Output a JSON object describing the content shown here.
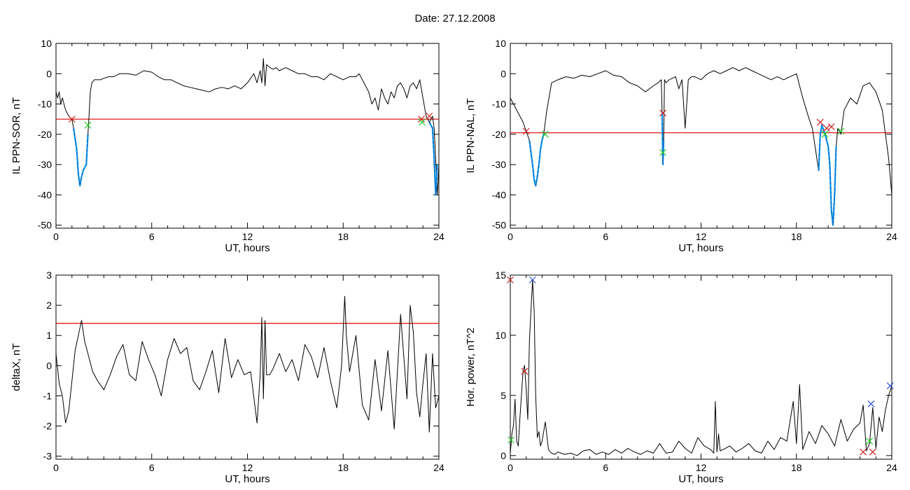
{
  "figure": {
    "title": "Date:  27.12.2008"
  },
  "colors": {
    "trace": "#000000",
    "threshold": "#dd0000",
    "segment": "#1f5fd6",
    "segment_alt": "#00a0e0",
    "start_marker": "#22cc22",
    "end_marker": "#cc2222",
    "peak_marker": "#2a4fd6"
  },
  "chart_data": [
    {
      "type": "line",
      "xlabel": "UT, hours",
      "ylabel": "IL PPN-SOR, nT",
      "xlim": [
        0,
        24
      ],
      "ylim": [
        -51,
        10
      ],
      "xticks": [
        0,
        6,
        12,
        18,
        24
      ],
      "yticks": [
        -50,
        -40,
        -30,
        -20,
        -10,
        0,
        10
      ],
      "threshold": -15,
      "series": [
        {
          "x": [
            0.0,
            0.1,
            0.2,
            0.3,
            0.4,
            0.6,
            0.8,
            1.0,
            1.1,
            1.3,
            1.4,
            1.5,
            1.6,
            1.7,
            1.8,
            1.9,
            2.0,
            2.05,
            2.15,
            2.25,
            2.4,
            2.6,
            2.8,
            3.0,
            3.3,
            3.6,
            4.0,
            4.5,
            5.0,
            5.5,
            6.0,
            6.4,
            6.8,
            7.2,
            7.6,
            8.0,
            8.4,
            8.8,
            9.2,
            9.6,
            10.0,
            10.4,
            10.8,
            11.2,
            11.6,
            12.0,
            12.2,
            12.4,
            12.6,
            12.8,
            12.9,
            13.0,
            13.1,
            13.2,
            13.4,
            13.6,
            13.8,
            14.0,
            14.4,
            14.8,
            15.2,
            15.6,
            16.0,
            16.4,
            16.8,
            17.2,
            17.6,
            18.0,
            18.4,
            18.8,
            19.0,
            19.2,
            19.4,
            19.6,
            19.8,
            20.0,
            20.2,
            20.4,
            20.6,
            20.8,
            21.0,
            21.2,
            21.4,
            21.6,
            21.8,
            22.0,
            22.2,
            22.4,
            22.6,
            22.8,
            23.0,
            23.2,
            23.4,
            23.6,
            23.7,
            23.8,
            23.9,
            24.0
          ],
          "y": [
            -6,
            -8,
            -6,
            -10,
            -8,
            -12,
            -14,
            -15,
            -18,
            -25,
            -33,
            -37,
            -34,
            -32,
            -31,
            -30,
            -20,
            -16,
            -6,
            -3,
            -2,
            -2,
            -2,
            -1.5,
            -1,
            -1,
            0,
            0,
            -0.5,
            1,
            0.5,
            -1,
            -2,
            -2,
            -3,
            -4,
            -4.5,
            -5,
            -5.5,
            -6,
            -5,
            -4.5,
            -5,
            -4,
            -5,
            -3,
            -1.5,
            0,
            -3,
            1,
            -3,
            5,
            -4,
            3,
            2,
            1.5,
            2,
            1,
            2,
            1,
            0,
            0,
            -1,
            -1,
            -2,
            0,
            -1,
            -2,
            -1,
            -1,
            0,
            -2,
            -4,
            -6,
            -10,
            -8,
            -12,
            -5,
            -8,
            -10,
            -6,
            -8,
            -4,
            -3,
            -5,
            -8,
            -4,
            -3,
            -5,
            -2,
            -8,
            -14,
            -16,
            -14,
            -18,
            -28,
            -40,
            -30
          ],
          "markers": [
            {
              "x": 1.0,
              "y": -15,
              "color": "end"
            },
            {
              "x": 2.0,
              "y": -17,
              "color": "start"
            },
            {
              "x": 22.9,
              "y": -15,
              "color": "end"
            },
            {
              "x": 23.4,
              "y": -14,
              "color": "end"
            },
            {
              "x": 22.95,
              "y": -16,
              "color": "start"
            }
          ]
        }
      ],
      "highlight_segments": [
        {
          "x": [
            1.1,
            1.3,
            1.4,
            1.5,
            1.6,
            1.7,
            1.8,
            1.9,
            2.0
          ],
          "y": [
            -18,
            -25,
            -33,
            -37,
            -34,
            -32,
            -31,
            -30,
            -20
          ]
        },
        {
          "x": [
            23.4,
            23.6,
            23.7,
            23.8,
            23.9
          ],
          "y": [
            -16,
            -18,
            -28,
            -40,
            -30
          ]
        }
      ]
    },
    {
      "type": "line",
      "xlabel": "UT, hours",
      "ylabel": "IL PPN-NAL, nT",
      "xlim": [
        0,
        24
      ],
      "ylim": [
        -51,
        10
      ],
      "xticks": [
        0,
        6,
        12,
        18,
        24
      ],
      "yticks": [
        -50,
        -40,
        -30,
        -20,
        -10,
        0,
        10
      ],
      "threshold": -19.5,
      "series": [
        {
          "x": [
            0.0,
            0.2,
            0.4,
            0.6,
            0.8,
            1.0,
            1.2,
            1.4,
            1.5,
            1.6,
            1.7,
            1.8,
            1.9,
            2.0,
            2.1,
            2.3,
            2.6,
            3.0,
            3.5,
            4.0,
            4.5,
            5.0,
            5.5,
            6.0,
            6.5,
            7.0,
            7.5,
            8.0,
            8.5,
            9.0,
            9.3,
            9.5,
            9.55,
            9.6,
            9.65,
            9.7,
            9.8,
            10.0,
            10.4,
            10.6,
            10.8,
            11.0,
            11.2,
            11.4,
            11.6,
            12.0,
            12.4,
            12.8,
            13.2,
            13.6,
            14.0,
            14.4,
            14.8,
            15.2,
            15.6,
            16.0,
            16.4,
            16.8,
            17.2,
            17.6,
            18.0,
            18.4,
            18.8,
            19.0,
            19.2,
            19.4,
            19.5,
            19.6,
            19.8,
            20.0,
            20.1,
            20.2,
            20.3,
            20.4,
            20.5,
            20.6,
            20.8,
            21.0,
            21.4,
            21.8,
            22.2,
            22.6,
            23.0,
            23.4,
            23.8,
            24.0
          ],
          "y": [
            -8,
            -10,
            -12,
            -14,
            -16,
            -19,
            -22,
            -30,
            -35,
            -37,
            -34,
            -30,
            -25,
            -22,
            -20,
            -12,
            -3,
            -2,
            -1,
            -1.5,
            -0.5,
            -1,
            0,
            1,
            -0.5,
            -1,
            -3,
            -4,
            -6,
            -4,
            -3,
            -2,
            -13,
            -30,
            -22,
            -2,
            -3,
            -2,
            -1,
            -5,
            -2,
            -18,
            -2,
            -1,
            -1,
            -2,
            0,
            1,
            0,
            1,
            2,
            1,
            2,
            1,
            0,
            -1,
            -2,
            -1,
            -2,
            -1,
            0,
            -8,
            -15,
            -18,
            -25,
            -32,
            -20,
            -17,
            -20,
            -24,
            -30,
            -45,
            -50,
            -40,
            -24,
            -18,
            -20,
            -12,
            -8,
            -10,
            -4,
            -3,
            -6,
            -12,
            -28,
            -40
          ],
          "markers": [
            {
              "x": 1.0,
              "y": -19,
              "color": "end"
            },
            {
              "x": 2.2,
              "y": -20,
              "color": "start"
            },
            {
              "x": 9.6,
              "y": -13,
              "color": "end"
            },
            {
              "x": 9.6,
              "y": -26,
              "color": "start"
            },
            {
              "x": 19.5,
              "y": -16,
              "color": "end"
            },
            {
              "x": 19.9,
              "y": -18,
              "color": "end"
            },
            {
              "x": 20.2,
              "y": -17.5,
              "color": "end"
            },
            {
              "x": 19.8,
              "y": -20,
              "color": "start"
            },
            {
              "x": 20.8,
              "y": -19,
              "color": "start"
            }
          ]
        }
      ],
      "highlight_segments": [
        {
          "x": [
            1.2,
            1.4,
            1.5,
            1.6,
            1.7,
            1.8,
            1.9,
            2.0,
            2.1
          ],
          "y": [
            -22,
            -30,
            -35,
            -37,
            -34,
            -30,
            -25,
            -22,
            -20
          ]
        },
        {
          "x": [
            9.55,
            9.6,
            9.65
          ],
          "y": [
            -13,
            -30,
            -22
          ]
        },
        {
          "x": [
            19.4,
            19.5,
            19.6,
            19.8,
            20.0,
            20.1,
            20.2,
            20.3,
            20.4,
            20.5
          ],
          "y": [
            -32,
            -20,
            -17,
            -20,
            -24,
            -30,
            -45,
            -50,
            -40,
            -24
          ]
        }
      ]
    },
    {
      "type": "line",
      "xlabel": "UT, hours",
      "ylabel": "deltaX, nT",
      "xlim": [
        0,
        24
      ],
      "ylim": [
        -3.1,
        3
      ],
      "xticks": [
        0,
        6,
        12,
        18,
        24
      ],
      "yticks": [
        -3,
        -2,
        -1,
        0,
        1,
        2,
        3
      ],
      "threshold": 1.4,
      "series": [
        {
          "x": [
            0.0,
            0.2,
            0.4,
            0.6,
            0.8,
            1.0,
            1.2,
            1.4,
            1.6,
            1.8,
            2.0,
            2.3,
            2.6,
            3.0,
            3.4,
            3.8,
            4.2,
            4.6,
            5.0,
            5.4,
            5.8,
            6.2,
            6.6,
            7.0,
            7.4,
            7.8,
            8.2,
            8.6,
            9.0,
            9.4,
            9.8,
            10.2,
            10.6,
            11.0,
            11.4,
            11.8,
            12.2,
            12.6,
            12.8,
            12.9,
            13.0,
            13.1,
            13.2,
            13.4,
            13.6,
            14.0,
            14.4,
            14.8,
            15.2,
            15.6,
            16.0,
            16.4,
            16.8,
            17.2,
            17.6,
            17.9,
            18.0,
            18.1,
            18.2,
            18.4,
            18.8,
            19.2,
            19.6,
            20.0,
            20.4,
            20.8,
            21.2,
            21.6,
            22.0,
            22.2,
            22.4,
            22.6,
            22.8,
            23.0,
            23.2,
            23.4,
            23.6,
            23.8,
            24.0
          ],
          "y": [
            0.4,
            -0.6,
            -1.0,
            -1.9,
            -1.5,
            -0.5,
            0.5,
            1.0,
            1.5,
            0.8,
            0.4,
            -0.2,
            -0.5,
            -0.8,
            -0.3,
            0.3,
            0.7,
            -0.3,
            -0.5,
            0.8,
            0.2,
            -0.3,
            -1.0,
            0.2,
            0.9,
            0.4,
            0.6,
            -0.5,
            -0.8,
            -0.2,
            0.5,
            -0.9,
            0.9,
            -0.4,
            0.2,
            -0.3,
            -0.2,
            -1.9,
            -0.3,
            1.6,
            -1.1,
            1.5,
            -0.3,
            -0.3,
            -0.1,
            0.4,
            -0.2,
            0.2,
            -0.5,
            0.7,
            0.3,
            -0.4,
            0.6,
            -0.5,
            -1.4,
            0.0,
            1.2,
            2.3,
            1.0,
            -0.2,
            1.0,
            -1.3,
            -1.8,
            0.2,
            -1.5,
            0.5,
            -2.1,
            1.7,
            -1.1,
            2.0,
            1.1,
            -0.9,
            -1.7,
            -0.6,
            0.4,
            -2.2,
            0.4,
            -1.4,
            -1.0
          ]
        }
      ]
    },
    {
      "type": "line",
      "xlabel": "UT, hours",
      "ylabel": "Hor. power, nT^2",
      "xlim": [
        0,
        24
      ],
      "ylim": [
        -0.3,
        15
      ],
      "xticks": [
        0,
        6,
        12,
        18,
        24
      ],
      "yticks": [
        0,
        5,
        10,
        15
      ],
      "series": [
        {
          "x": [
            0.0,
            0.1,
            0.2,
            0.3,
            0.4,
            0.5,
            0.6,
            0.8,
            0.9,
            1.0,
            1.1,
            1.2,
            1.3,
            1.4,
            1.5,
            1.6,
            1.7,
            1.8,
            1.9,
            2.0,
            2.2,
            2.4,
            2.6,
            2.8,
            3.0,
            3.4,
            3.8,
            4.2,
            4.6,
            5.0,
            5.4,
            5.8,
            6.2,
            6.6,
            7.0,
            7.4,
            7.8,
            8.2,
            8.6,
            9.0,
            9.4,
            9.8,
            10.2,
            10.6,
            11.0,
            11.4,
            11.8,
            12.2,
            12.6,
            12.8,
            12.9,
            13.0,
            13.1,
            13.2,
            13.4,
            13.8,
            14.2,
            14.6,
            15.0,
            15.4,
            15.8,
            16.2,
            16.6,
            17.0,
            17.4,
            17.8,
            18.0,
            18.2,
            18.4,
            18.8,
            19.2,
            19.6,
            20.0,
            20.4,
            20.8,
            21.2,
            21.6,
            22.0,
            22.2,
            22.4,
            22.6,
            22.8,
            23.0,
            23.2,
            23.4,
            23.6,
            23.8,
            24.0
          ],
          "y": [
            0.2,
            1.8,
            2.5,
            4.7,
            1.2,
            0.8,
            3.0,
            7.0,
            7.5,
            5.5,
            3.0,
            9.5,
            12.0,
            14.6,
            12.0,
            5.0,
            1.5,
            2.0,
            0.8,
            1.2,
            2.8,
            0.5,
            0.2,
            0.1,
            0.3,
            0.1,
            0.2,
            0.0,
            0.4,
            0.5,
            0.1,
            0.3,
            0.1,
            0.5,
            0.2,
            0.6,
            0.3,
            0.1,
            0.4,
            0.2,
            1.0,
            0.2,
            0.3,
            1.2,
            0.6,
            0.2,
            1.5,
            0.8,
            0.5,
            0.2,
            4.5,
            0.3,
            1.8,
            0.4,
            0.5,
            0.8,
            0.3,
            0.6,
            1.0,
            0.4,
            0.2,
            1.2,
            0.5,
            1.5,
            1.2,
            4.5,
            1.0,
            5.9,
            0.5,
            2.0,
            1.0,
            2.5,
            1.8,
            0.8,
            3.0,
            1.2,
            2.2,
            2.7,
            4.2,
            0.4,
            1.0,
            4.0,
            0.6,
            3.2,
            2.0,
            3.8,
            5.0,
            5.8
          ],
          "markers": [
            {
              "x": 0.0,
              "y": 14.6,
              "color": "end"
            },
            {
              "x": 0.9,
              "y": 7.0,
              "color": "end"
            },
            {
              "x": 0.05,
              "y": 1.3,
              "color": "start"
            },
            {
              "x": 1.4,
              "y": 14.6,
              "color": "peak"
            },
            {
              "x": 22.2,
              "y": 0.3,
              "color": "end"
            },
            {
              "x": 22.8,
              "y": 0.3,
              "color": "end"
            },
            {
              "x": 22.6,
              "y": 1.2,
              "color": "start"
            },
            {
              "x": 22.7,
              "y": 4.3,
              "color": "peak"
            },
            {
              "x": 23.9,
              "y": 5.8,
              "color": "peak"
            }
          ]
        }
      ]
    }
  ]
}
